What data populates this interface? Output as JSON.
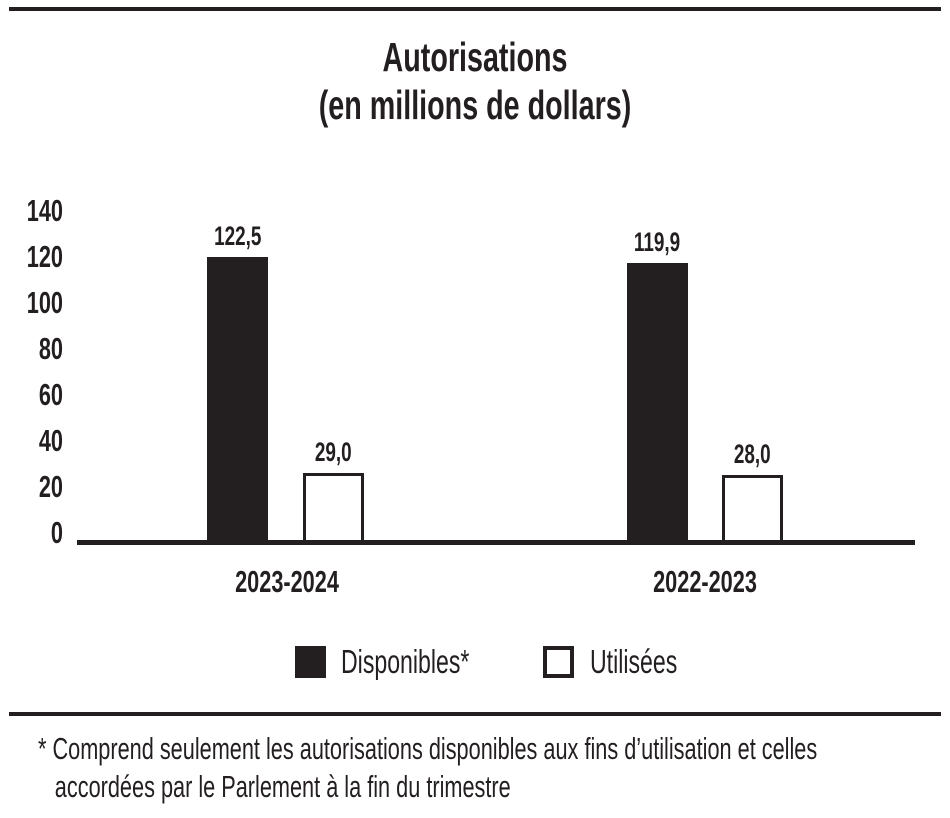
{
  "colors": {
    "ink": "#231f20",
    "background": "#ffffff"
  },
  "chart_data": {
    "type": "bar",
    "title": "Autorisations",
    "subtitle": "(en millions de dollars)",
    "ylim": [
      0,
      140
    ],
    "ytick_interval": 20,
    "yticks": [
      "140",
      "120",
      "100",
      "80",
      "60",
      "40",
      "20",
      "0"
    ],
    "grid": false,
    "legend_position": "bottom",
    "categories": [
      "2023-2024",
      "2022-2023"
    ],
    "series": [
      {
        "name": "Disponibles*",
        "swatch": "filled-black",
        "values": [
          122.5,
          119.9
        ]
      },
      {
        "name": "Utilisées",
        "swatch": "outlined-white",
        "values": [
          29.0,
          28.0
        ]
      }
    ],
    "groups": [
      {
        "category": "2023-2024",
        "bars": [
          {
            "series": "Disponibles*",
            "value": 122.5,
            "label": "122,5"
          },
          {
            "series": "Utilisées",
            "value": 29.0,
            "label": "29,0"
          }
        ]
      },
      {
        "category": "2022-2023",
        "bars": [
          {
            "series": "Disponibles*",
            "value": 119.9,
            "label": "119,9"
          },
          {
            "series": "Utilisées",
            "value": 28.0,
            "label": "28,0"
          }
        ]
      }
    ]
  },
  "legend": {
    "items": [
      {
        "label": "Disponibles*",
        "swatch": "filled-black"
      },
      {
        "label": "Utilisées",
        "swatch": "outlined-white"
      }
    ]
  },
  "footnote": {
    "marker": "*",
    "lines": [
      "Comprend seulement les autorisations disponibles aux fins d’utilisation et celles",
      "accordées par le Parlement à la fin du trimestre"
    ]
  }
}
